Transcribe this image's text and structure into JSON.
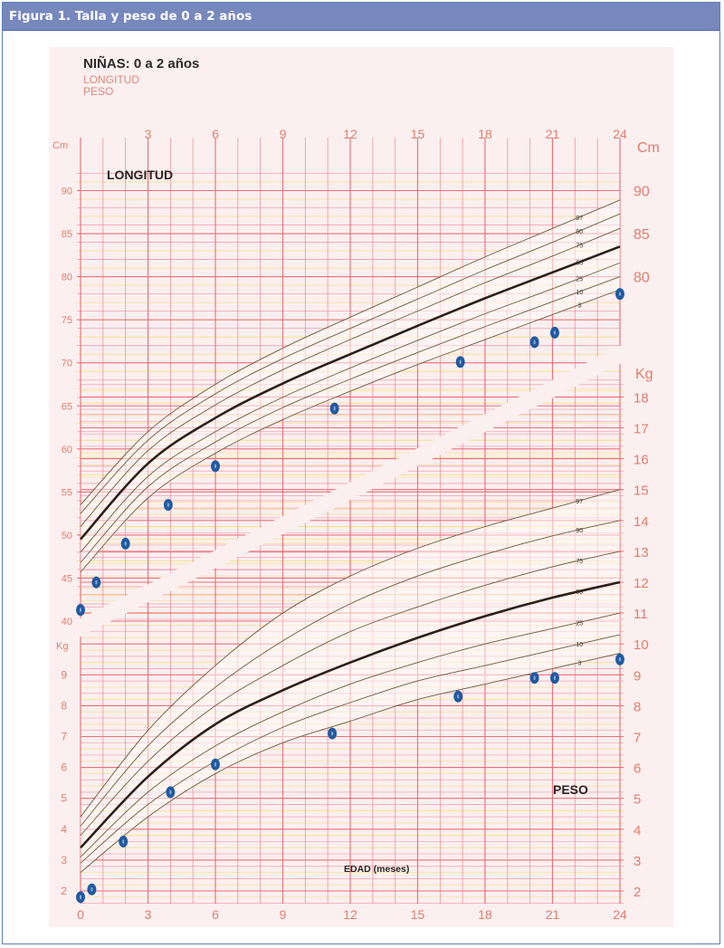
{
  "figure": {
    "caption": "Figura 1.  Talla y peso de 0 a 2 años"
  },
  "chart_header": {
    "title": "NIÑAS: 0 a 2 años",
    "legend": [
      "LONGITUD",
      "PESO"
    ]
  },
  "labels": {
    "longitud": "LONGITUD",
    "peso": "PESO",
    "edad": "EDAD (meses)",
    "cm": "Cm",
    "kg": "Kg"
  },
  "colors": {
    "caption_bg": "#7788bd",
    "grid_major": "#e8707a",
    "grid_minor_pink": "#f0a0b4",
    "grid_minor_yellow": "#f3e090",
    "tick_text": "#e07d6e",
    "percentile_line": "#6b5a3a",
    "median_line": "#2a2019",
    "data_point": "#1f5aa0"
  },
  "chart_data": [
    {
      "type": "scatter",
      "title": "LONGITUD",
      "xlabel": "EDAD (meses)",
      "ylabel": "Cm",
      "xlim": [
        0,
        24
      ],
      "ylim": [
        40,
        92
      ],
      "x_ticks": [
        0,
        3,
        6,
        9,
        12,
        15,
        18,
        21,
        24
      ],
      "y_ticks": [
        40,
        45,
        50,
        55,
        60,
        65,
        70,
        75,
        80,
        85,
        90
      ],
      "grid": true,
      "percentile_labels": [
        "97",
        "90",
        "75",
        "50",
        "25",
        "10",
        "3"
      ],
      "reference_curves": {
        "x": [
          0,
          3,
          6,
          9,
          12,
          15,
          18,
          21,
          24
        ],
        "p97": [
          53.5,
          62.0,
          67.5,
          71.7,
          75.3,
          78.8,
          82.3,
          85.6,
          88.9
        ],
        "p90": [
          52.5,
          61.0,
          66.4,
          70.5,
          74.0,
          77.4,
          80.8,
          84.0,
          87.3
        ],
        "p75": [
          51.0,
          59.8,
          65.1,
          69.2,
          72.7,
          76.0,
          79.3,
          82.4,
          85.6
        ],
        "p50": [
          49.5,
          58.3,
          63.6,
          67.6,
          71.0,
          74.3,
          77.5,
          80.5,
          83.5
        ],
        "p25": [
          48.0,
          56.8,
          62.0,
          66.0,
          69.4,
          72.6,
          75.7,
          78.6,
          81.6
        ],
        "p10": [
          46.8,
          55.6,
          60.8,
          64.8,
          68.1,
          71.2,
          74.2,
          77.1,
          80.0
        ],
        "p3": [
          45.7,
          54.3,
          59.5,
          63.4,
          66.7,
          69.8,
          72.7,
          75.6,
          78.5
        ]
      },
      "series": [
        {
          "name": "Paciente - longitud",
          "x": [
            0.0,
            0.7,
            2.0,
            3.9,
            6.0,
            11.3,
            16.9,
            20.2,
            21.1,
            24.0
          ],
          "y": [
            41.3,
            44.5,
            49.0,
            53.5,
            58.0,
            64.7,
            70.1,
            72.4,
            73.5,
            78.0
          ]
        }
      ]
    },
    {
      "type": "scatter",
      "title": "PESO",
      "xlabel": "EDAD (meses)",
      "ylabel": "Kg",
      "xlim": [
        0,
        24
      ],
      "ylim": [
        1.5,
        18.5
      ],
      "x_ticks": [
        0,
        3,
        6,
        9,
        12,
        15,
        18,
        21,
        24
      ],
      "y_ticks_left": [
        2,
        3,
        4,
        5,
        6,
        7,
        8,
        9
      ],
      "y_ticks_right": [
        2,
        3,
        4,
        5,
        6,
        7,
        8,
        9,
        10,
        11,
        12,
        13,
        14,
        15,
        16,
        17,
        18
      ],
      "grid": true,
      "percentile_labels": [
        "97",
        "90",
        "75",
        "50",
        "25",
        "10",
        "3"
      ],
      "reference_curves": {
        "x": [
          0,
          3,
          6,
          9,
          12,
          15,
          18,
          21,
          24
        ],
        "p97": [
          4.4,
          7.2,
          9.3,
          11.0,
          12.2,
          13.1,
          13.8,
          14.4,
          15.0
        ],
        "p90": [
          4.1,
          6.7,
          8.6,
          10.1,
          11.3,
          12.2,
          12.9,
          13.5,
          14.0
        ],
        "p75": [
          3.8,
          6.2,
          8.0,
          9.3,
          10.4,
          11.2,
          11.9,
          12.5,
          13.0
        ],
        "p50": [
          3.4,
          5.7,
          7.4,
          8.5,
          9.4,
          10.2,
          10.9,
          11.5,
          12.0
        ],
        "p25": [
          3.1,
          5.2,
          6.7,
          7.8,
          8.7,
          9.4,
          10.0,
          10.5,
          11.0
        ],
        "p10": [
          2.9,
          4.8,
          6.2,
          7.3,
          8.1,
          8.8,
          9.3,
          9.8,
          10.3
        ],
        "p3": [
          2.6,
          4.4,
          5.8,
          6.8,
          7.5,
          8.2,
          8.7,
          9.2,
          9.7
        ]
      },
      "series": [
        {
          "name": "Paciente - peso",
          "x": [
            0.0,
            0.5,
            1.9,
            4.0,
            6.0,
            11.2,
            16.8,
            20.2,
            21.1,
            24.0
          ],
          "y": [
            1.8,
            2.05,
            3.6,
            5.2,
            6.1,
            7.1,
            8.3,
            8.9,
            8.9,
            9.5
          ]
        }
      ]
    }
  ]
}
